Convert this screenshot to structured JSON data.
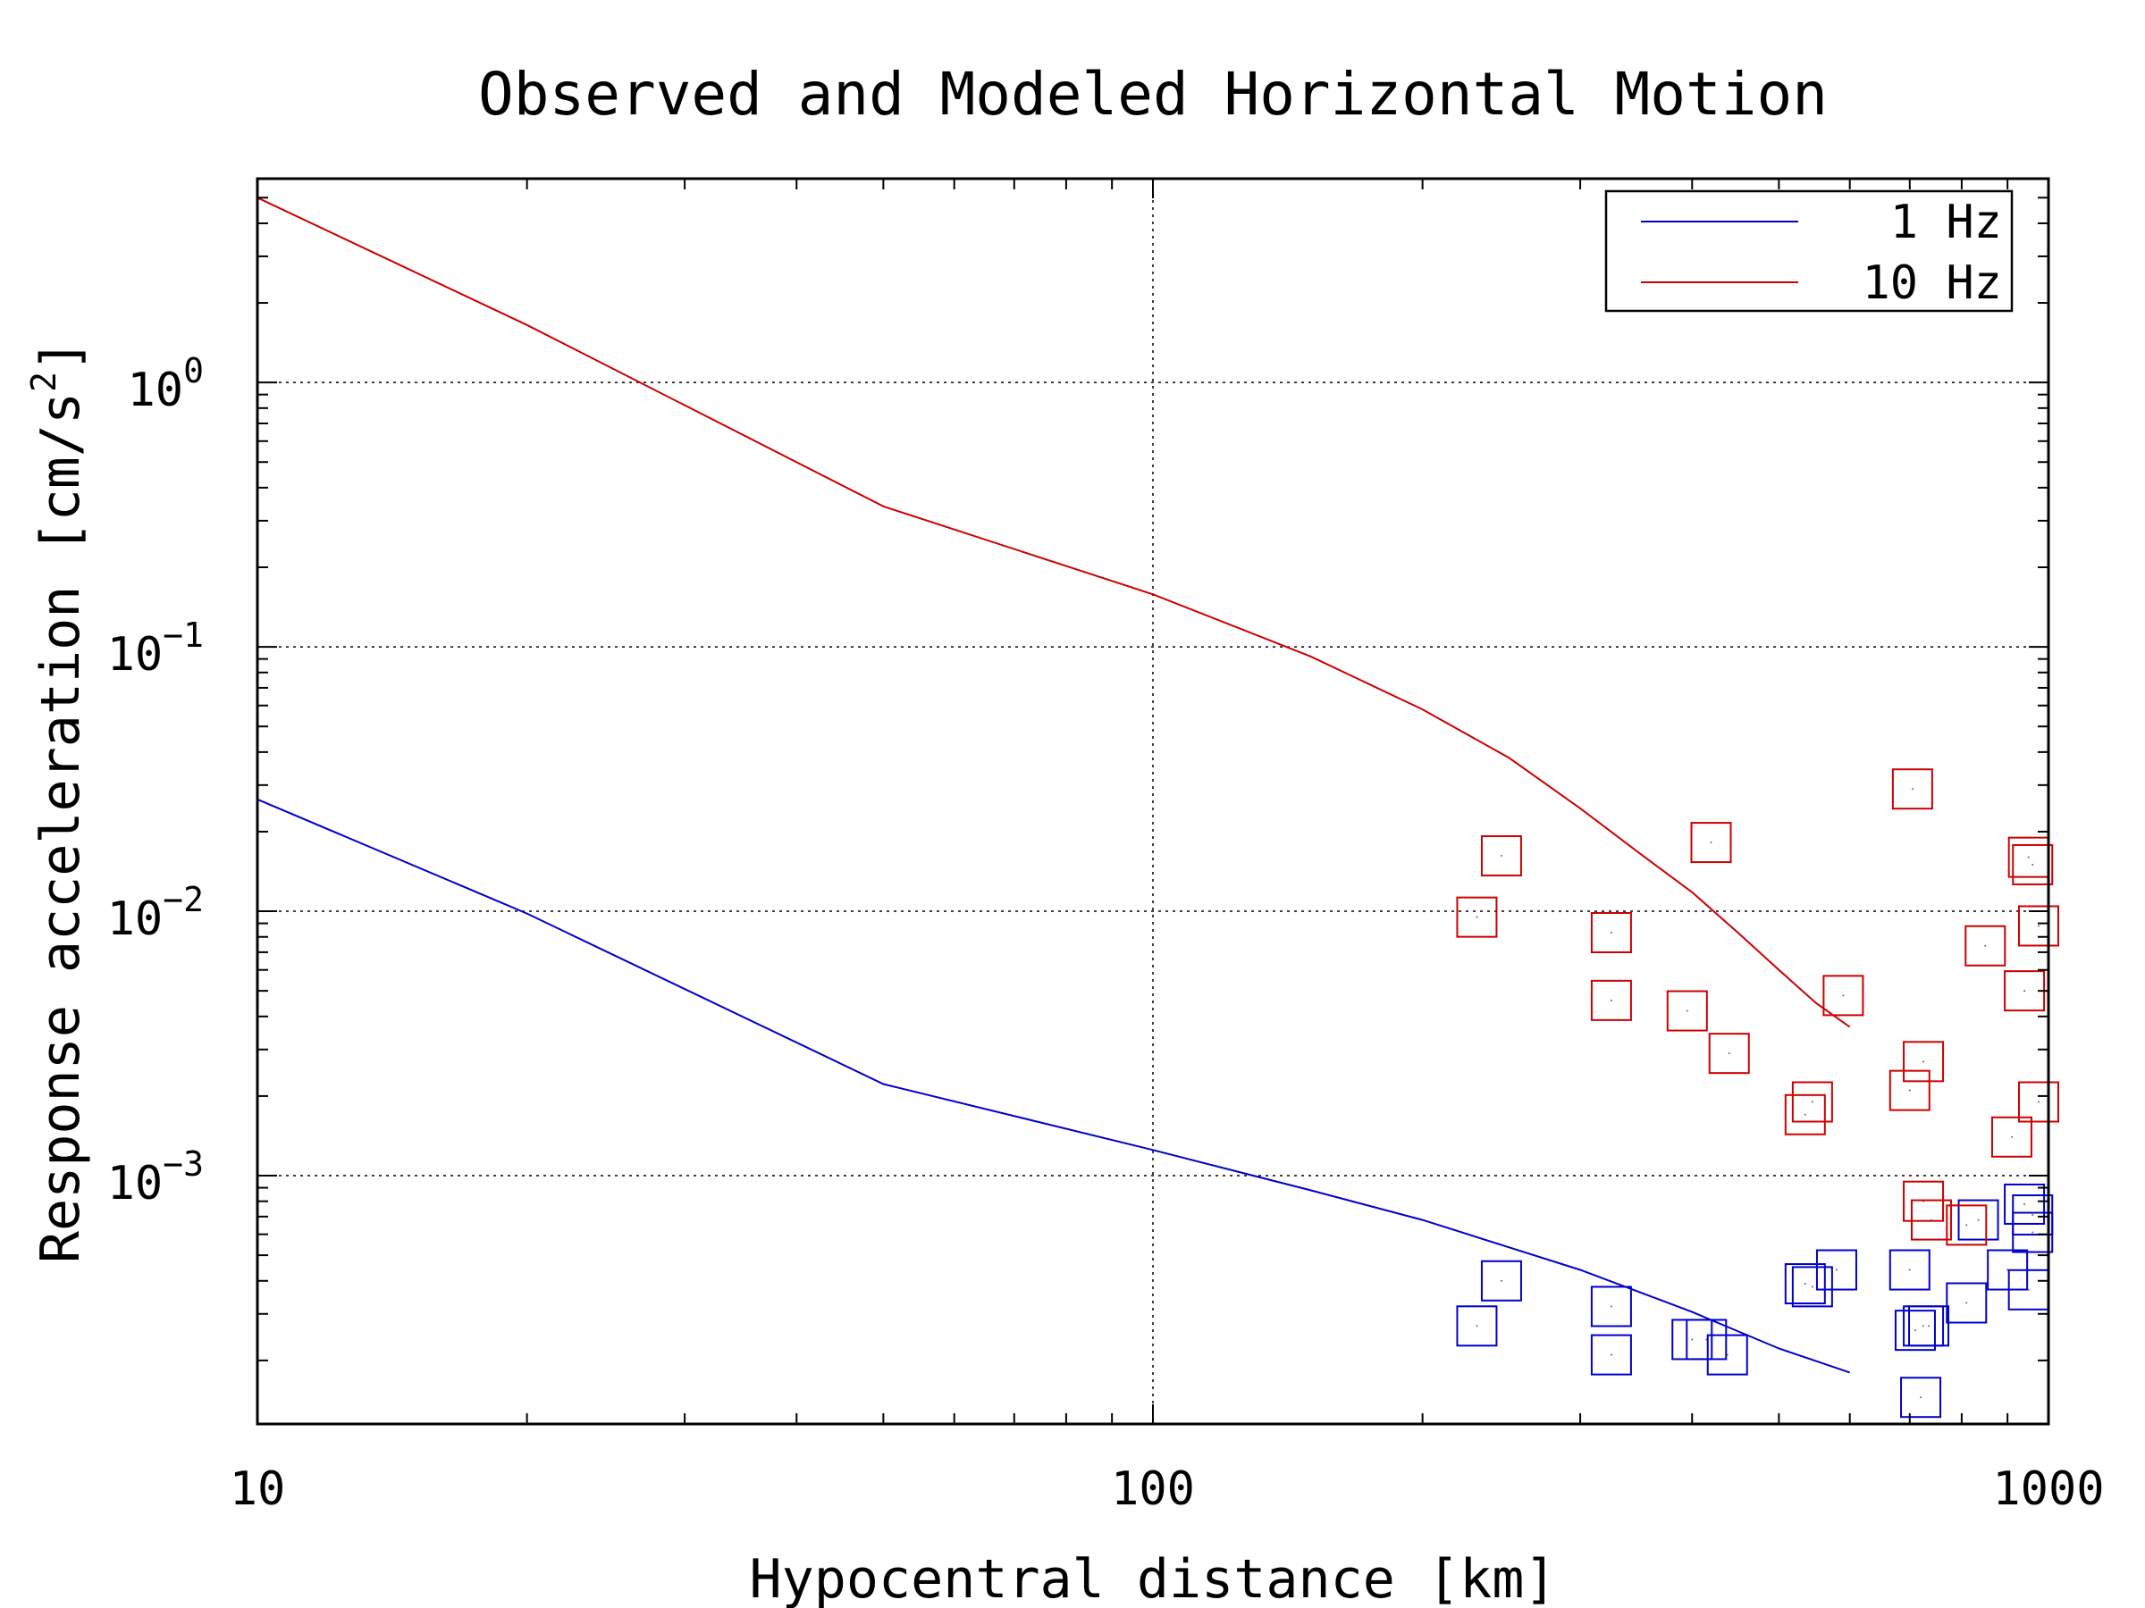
{
  "chart_data": {
    "type": "scatter",
    "title": "Observed and Modeled Horizontal Motion",
    "xlabel": "Hypocentral distance [km]",
    "ylabel": "Response acceleration [cm/s",
    "ylabel_sup": "2",
    "ylabel_end": "]",
    "x_scale": "log",
    "y_scale": "log",
    "xlim": [
      10,
      1000
    ],
    "ylim": [
      0.000115,
      5.9
    ],
    "grid": true,
    "legend_position": "top-right",
    "x_ticks": [
      {
        "value": 10,
        "label": "10"
      },
      {
        "value": 100,
        "label": "100"
      },
      {
        "value": 1000,
        "label": "1000"
      }
    ],
    "y_ticks": [
      {
        "value": 1,
        "base": "10",
        "exp": "0"
      },
      {
        "value": 0.1,
        "base": "10",
        "exp": "−1"
      },
      {
        "value": 0.01,
        "base": "10",
        "exp": "−2"
      },
      {
        "value": 0.001,
        "base": "10",
        "exp": "−3"
      }
    ],
    "series": [
      {
        "name": "1 Hz",
        "color": "#0000cc",
        "kind": "line",
        "points": [
          [
            10,
            0.0265
          ],
          [
            20,
            0.0098
          ],
          [
            50,
            0.00222
          ],
          [
            100,
            0.00125
          ],
          [
            150,
            0.00088
          ],
          [
            200,
            0.00068
          ],
          [
            300,
            0.00044
          ],
          [
            400,
            0.000305
          ],
          [
            500,
            0.000222
          ],
          [
            600,
            0.00018
          ]
        ]
      },
      {
        "name": "10 Hz",
        "color": "#cc0000",
        "kind": "line",
        "points": [
          [
            10,
            5.0
          ],
          [
            20,
            1.65
          ],
          [
            50,
            0.34
          ],
          [
            100,
            0.158
          ],
          [
            150,
            0.092
          ],
          [
            200,
            0.058
          ],
          [
            250,
            0.038
          ],
          [
            300,
            0.0245
          ],
          [
            350,
            0.0165
          ],
          [
            400,
            0.0118
          ],
          [
            450,
            0.0083
          ],
          [
            500,
            0.006
          ],
          [
            550,
            0.0045
          ],
          [
            600,
            0.00365
          ]
        ]
      },
      {
        "name": "",
        "color": "#0000cc",
        "kind": "markers",
        "points": [
          [
            230,
            0.00027
          ],
          [
            245,
            0.0004
          ],
          [
            325,
            0.00032
          ],
          [
            325,
            0.00021
          ],
          [
            400,
            0.00024
          ],
          [
            415,
            0.00024
          ],
          [
            438,
            0.00021
          ],
          [
            535,
            0.00039
          ],
          [
            545,
            0.00038
          ],
          [
            580,
            0.00044
          ],
          [
            700,
            0.00044
          ],
          [
            710,
            0.00026
          ],
          [
            725,
            0.00027
          ],
          [
            735,
            0.00027
          ],
          [
            720,
            0.000145
          ],
          [
            810,
            0.00033
          ],
          [
            835,
            0.00068
          ],
          [
            900,
            0.00044
          ],
          [
            940,
            0.00078
          ],
          [
            960,
            0.00071
          ],
          [
            960,
            0.00061
          ],
          [
            950,
            0.00037
          ]
        ]
      },
      {
        "name": "",
        "color": "#cc0000",
        "kind": "markers",
        "points": [
          [
            230,
            0.0095
          ],
          [
            245,
            0.0162
          ],
          [
            325,
            0.0083
          ],
          [
            325,
            0.0046
          ],
          [
            395,
            0.0042
          ],
          [
            420,
            0.0182
          ],
          [
            440,
            0.0029
          ],
          [
            535,
            0.0017
          ],
          [
            545,
            0.0019
          ],
          [
            590,
            0.0048
          ],
          [
            705,
            0.029
          ],
          [
            700,
            0.0021
          ],
          [
            725,
            0.0027
          ],
          [
            725,
            0.0008
          ],
          [
            740,
            0.00068
          ],
          [
            810,
            0.00065
          ],
          [
            850,
            0.0074
          ],
          [
            910,
            0.0014
          ],
          [
            940,
            0.005
          ],
          [
            950,
            0.016
          ],
          [
            960,
            0.015
          ],
          [
            975,
            0.0088
          ],
          [
            975,
            0.0019
          ]
        ]
      }
    ]
  }
}
